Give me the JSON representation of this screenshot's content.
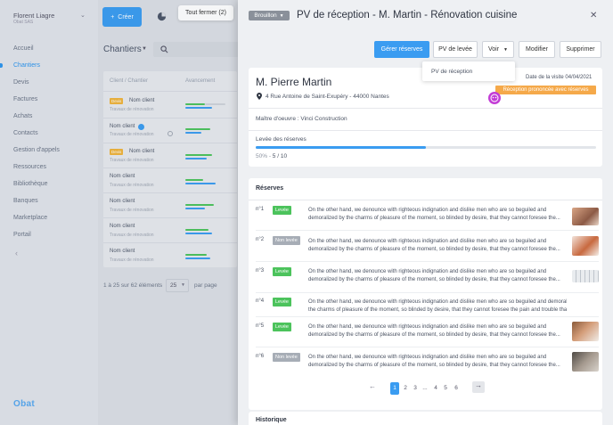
{
  "user": {
    "name": "Florent Liagre",
    "company": "Obat SAS"
  },
  "sidebar": {
    "items": [
      {
        "label": "Accueil"
      },
      {
        "label": "Chantiers"
      },
      {
        "label": "Devis"
      },
      {
        "label": "Factures"
      },
      {
        "label": "Achats"
      },
      {
        "label": "Contacts"
      },
      {
        "label": "Gestion d'appels"
      },
      {
        "label": "Ressources"
      },
      {
        "label": "Bibliothèque"
      },
      {
        "label": "Banques"
      },
      {
        "label": "Marketplace"
      },
      {
        "label": "Portail"
      }
    ]
  },
  "logo": "Obat",
  "toolbar": {
    "create_label": "Créer",
    "close_all_label": "Tout fermer (2)"
  },
  "list": {
    "title": "Chantiers",
    "columns": [
      "Client / Chantier",
      "Avancement"
    ],
    "rows": [
      {
        "badge": "Devis",
        "name": "Nom client",
        "sub": "Travaux de rénovation"
      },
      {
        "badge": "",
        "name": "Nom client",
        "sub": "Travaux de rénovation"
      },
      {
        "badge": "Devis",
        "name": "Nom client",
        "sub": "Travaux de rénovation"
      },
      {
        "badge": "",
        "name": "Nom client",
        "sub": "Travaux de rénovation"
      },
      {
        "badge": "",
        "name": "Nom client",
        "sub": "Travaux de rénovation"
      },
      {
        "badge": "",
        "name": "Nom client",
        "sub": "Travaux de rénovation"
      },
      {
        "badge": "",
        "name": "Nom client",
        "sub": "Travaux de rénovation"
      }
    ],
    "pagination_text": "1 à 25 sur 62 éléments",
    "per_page_value": "25",
    "per_page_label": "par page"
  },
  "panel": {
    "status": "Brouillon",
    "title": "PV de réception - M. Martin - Rénovation cuisine",
    "buttons": {
      "manage": "Gérer réserves",
      "pv_levee": "PV de levée",
      "voir": "Voir",
      "modifier": "Modifier",
      "supprimer": "Supprimer"
    },
    "voir_menu_item": "PV de réception",
    "client_name": "M. Pierre Martin",
    "address": "4 Rue Antoine de Saint-Exupéry - 44000 Nantes",
    "visit_date": "Date de la visite 04/04/2021",
    "reception_status": "Réception prononcée avec réserves",
    "maitre_oeuvre": "Maître d'oeuvre : Vinci Construction",
    "levee_label": "Levée des réserves",
    "progress_percent": 50,
    "progress_text_pct": "50% -",
    "progress_text_count": "5 / 10",
    "reserves_title": "Réserves",
    "reserves": [
      {
        "num": "n°1",
        "status": "Levée",
        "line1": "On the other hand, we denounce with righteous indignation and dislike men who are so beguiled and",
        "line2": "demoralized by the charms of pleasure of the moment, so blinded by desire, that they cannot foresee the..."
      },
      {
        "num": "n°2",
        "status": "Non levée",
        "line1": "On the other hand, we denounce with righteous indignation and dislike men who are so beguiled and",
        "line2": "demoralized by the charms of pleasure of the moment, so blinded by desire, that they cannot foresee the..."
      },
      {
        "num": "n°3",
        "status": "Levée",
        "line1": "On the other hand, we denounce with righteous indignation and dislike men who are so beguiled and",
        "line2": "demoralized by the charms of pleasure of the moment, so blinded by desire, that they cannot foresee the..."
      },
      {
        "num": "n°4",
        "status": "Levée",
        "line1": "On the other hand, we denounce with righteous indignation and dislike men who are so beguiled and demoralized by",
        "line2": "the charms of pleasure of the moment, so blinded by desire, that they cannot foresee the pain and trouble that are b..."
      },
      {
        "num": "n°5",
        "status": "Levée",
        "line1": "On the other hand, we denounce with righteous indignation and dislike men who are so beguiled and",
        "line2": "demoralized by the charms of pleasure of the moment, so blinded by desire, that they cannot foresee the..."
      },
      {
        "num": "n°6",
        "status": "Non levée",
        "line1": "On the other hand, we denounce with righteous indignation and dislike men who are so beguiled and",
        "line2": "demoralized by the charms of pleasure of the moment, so blinded by desire, that they cannot foresee the..."
      }
    ],
    "pages": [
      "1",
      "2",
      "3",
      "...",
      "4",
      "5",
      "6"
    ],
    "history_title": "Historique"
  },
  "colors": {
    "accent": "#3a9cf1",
    "green": "#4cc35c",
    "orange": "#f5a94a",
    "grey_badge": "#a7adb6"
  }
}
